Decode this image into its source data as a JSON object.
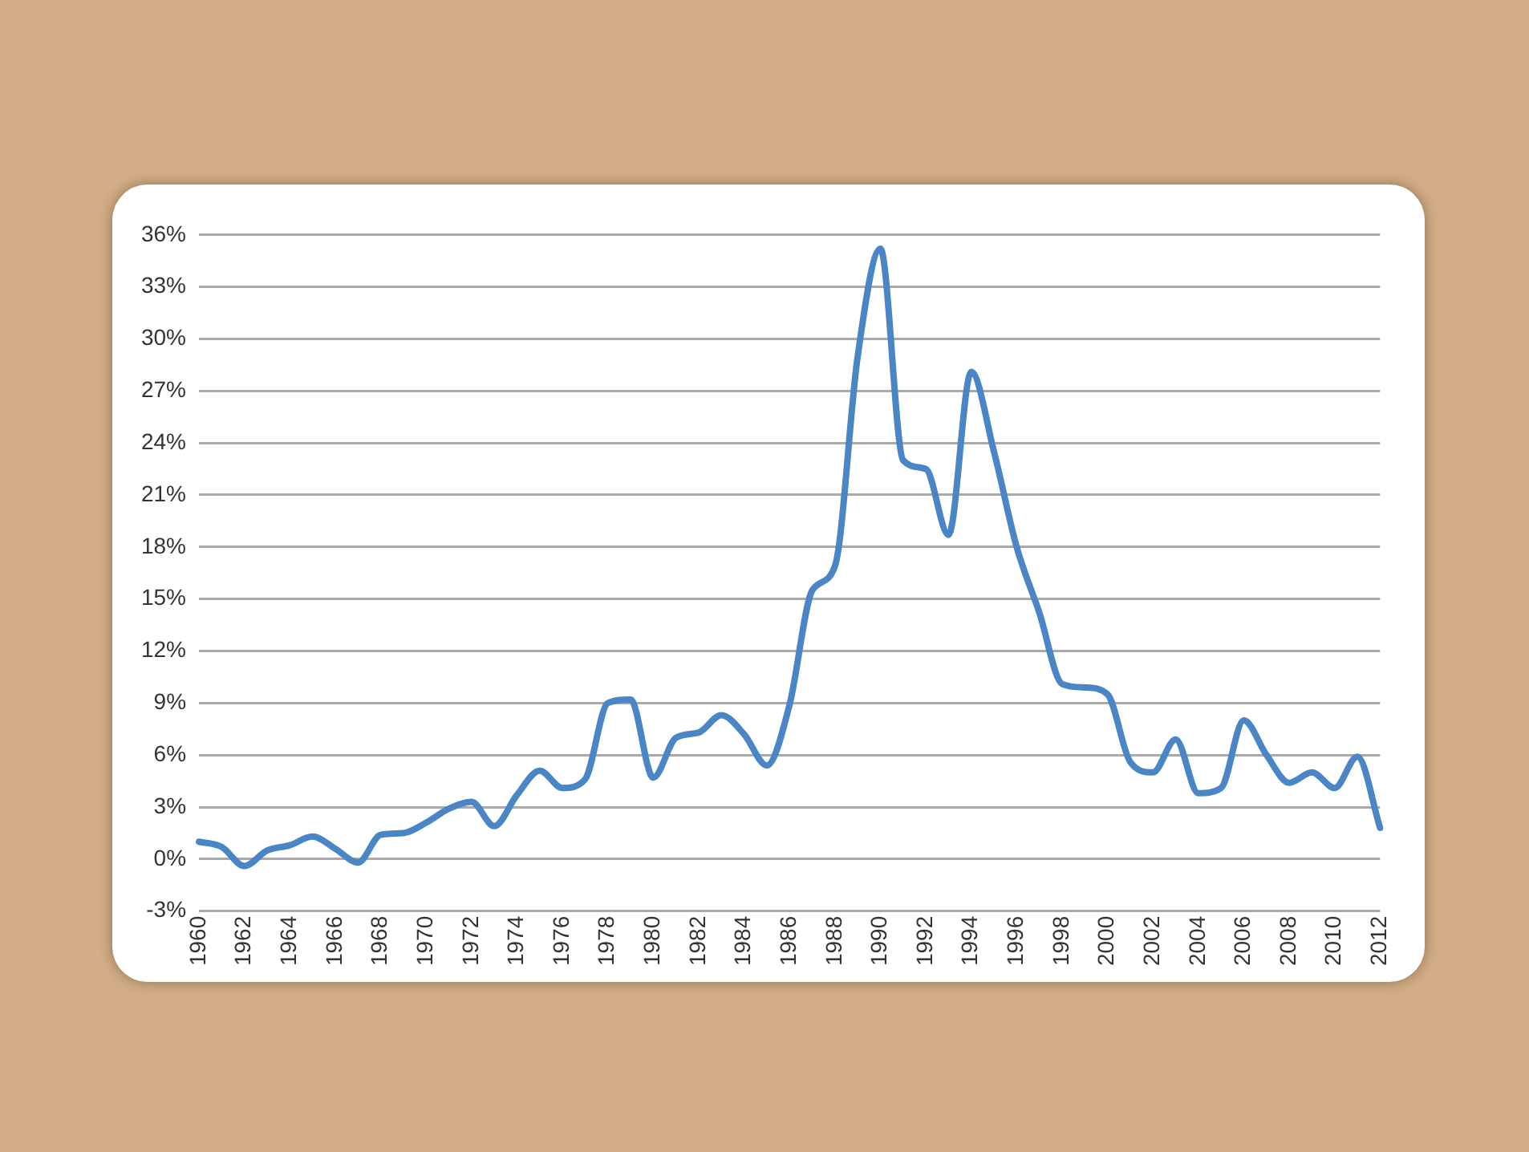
{
  "chart_data": {
    "type": "line",
    "categories": [
      "1960",
      null,
      "1962",
      null,
      "1964",
      null,
      "1966",
      null,
      "1968",
      null,
      "1970",
      null,
      "1972",
      null,
      "1974",
      null,
      "1976",
      null,
      "1978",
      null,
      "1980",
      null,
      "1982",
      null,
      "1984",
      null,
      "1986",
      null,
      "1988",
      null,
      "1990",
      null,
      "1992",
      null,
      "1994",
      null,
      "1996",
      null,
      "1998",
      null,
      "2000",
      null,
      "2002",
      null,
      "2004",
      null,
      "2006",
      null,
      "2008",
      null,
      "2010",
      null,
      "2012"
    ],
    "series": [
      {
        "color": "#4a86c5",
        "values": [
          1.0,
          0.7,
          -0.4,
          0.5,
          0.8,
          1.3,
          0.6,
          -0.2,
          1.4,
          1.5,
          2.1,
          2.9,
          3.3,
          1.9,
          3.7,
          5.1,
          4.1,
          4.6,
          9.0,
          9.2,
          4.7,
          7.0,
          7.3,
          8.3,
          7.2,
          5.4,
          8.9,
          15.5,
          16.9,
          29,
          35.2,
          23.0,
          22.5,
          18.7,
          28.1,
          23.5,
          18,
          14.2,
          10.1,
          9.9,
          9.5,
          5.6,
          5.0,
          6.9,
          3.8,
          4.1,
          8.0,
          6.0,
          4.4,
          5.0,
          4.1,
          5.9,
          1.8
        ]
      }
    ],
    "ylim": [
      -3,
      36
    ],
    "yticks": [
      {
        "value": -3,
        "label": "-3%"
      },
      {
        "value": 0,
        "label": "0%"
      },
      {
        "value": 3,
        "label": "3%"
      },
      {
        "value": 6,
        "label": "6%"
      },
      {
        "value": 9,
        "label": "9%"
      },
      {
        "value": 12,
        "label": "12%"
      },
      {
        "value": 15,
        "label": "15%"
      },
      {
        "value": 18,
        "label": "18%"
      },
      {
        "value": 21,
        "label": "21%"
      },
      {
        "value": 24,
        "label": "24%"
      },
      {
        "value": 27,
        "label": "27%"
      },
      {
        "value": 30,
        "label": "30%"
      },
      {
        "value": 33,
        "label": "33%"
      },
      {
        "value": 36,
        "label": "36%"
      }
    ],
    "grid": "y",
    "legend": false,
    "marker": "none",
    "line_style": "solid"
  }
}
